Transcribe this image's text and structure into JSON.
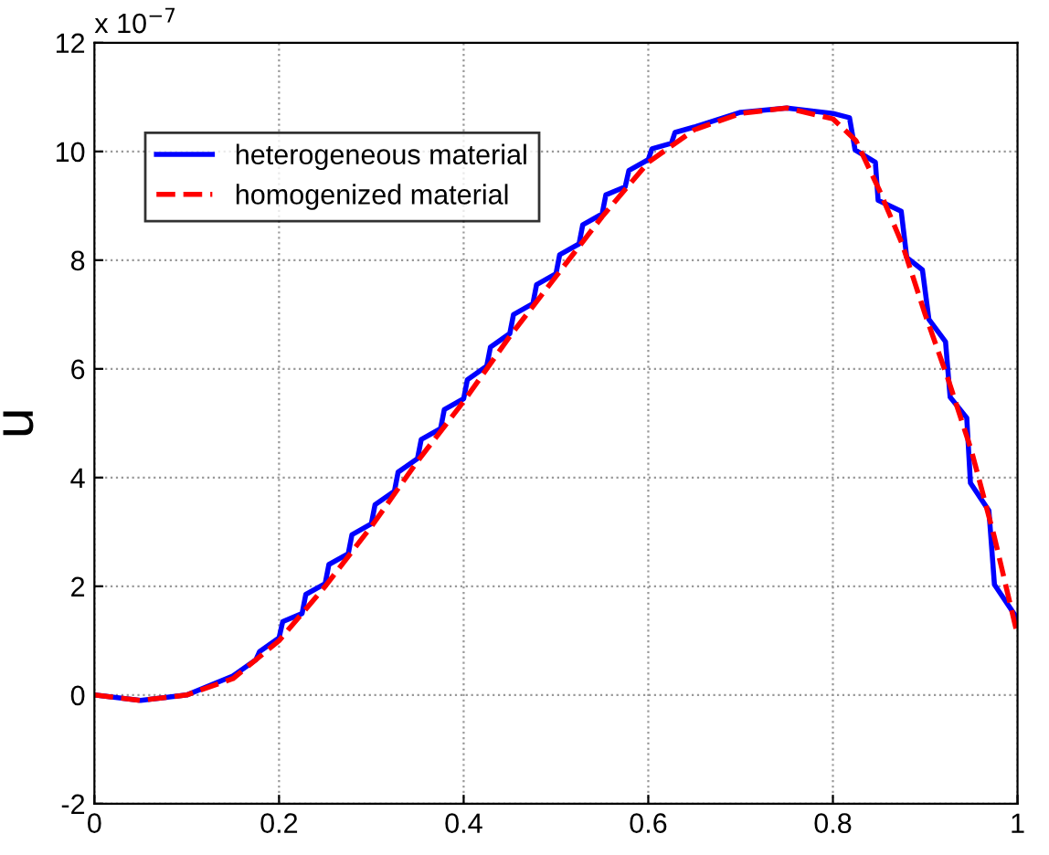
{
  "chart_data": {
    "type": "line",
    "ylabel": "u",
    "annotations": [
      "x 10$^{−7}$"
    ],
    "xlim": [
      0,
      1
    ],
    "ylim": [
      -2,
      12
    ],
    "xticks": [
      0,
      0.2,
      0.4,
      0.6,
      0.8,
      1
    ],
    "yticks": [
      -2,
      0,
      2,
      4,
      6,
      8,
      10,
      12
    ],
    "grid": true,
    "legend": "top left",
    "series": [
      {
        "name": "heterogeneous material",
        "color": "#0000ff",
        "line_style": "solid",
        "x": [
          0,
          0.05,
          0.1,
          0.15,
          0.175,
          0.179,
          0.2,
          0.204,
          0.225,
          0.229,
          0.25,
          0.254,
          0.275,
          0.279,
          0.3,
          0.304,
          0.325,
          0.329,
          0.35,
          0.354,
          0.375,
          0.379,
          0.4,
          0.404,
          0.425,
          0.429,
          0.45,
          0.454,
          0.475,
          0.479,
          0.5,
          0.504,
          0.525,
          0.529,
          0.55,
          0.554,
          0.575,
          0.579,
          0.6,
          0.604,
          0.625,
          0.629,
          0.65,
          0.7,
          0.75,
          0.8,
          0.818,
          0.824,
          0.846,
          0.849,
          0.874,
          0.88,
          0.897,
          0.904,
          0.922,
          0.927,
          0.945,
          0.949,
          0.969,
          0.975,
          1.0
        ],
        "values": [
          0,
          -0.1,
          0,
          0.35,
          0.65,
          0.8,
          1.05,
          1.35,
          1.5,
          1.85,
          2.05,
          2.4,
          2.6,
          2.95,
          3.15,
          3.5,
          3.75,
          4.1,
          4.35,
          4.7,
          4.9,
          5.25,
          5.45,
          5.8,
          6.05,
          6.4,
          6.65,
          7.0,
          7.2,
          7.55,
          7.75,
          8.1,
          8.3,
          8.65,
          8.85,
          9.2,
          9.35,
          9.65,
          9.85,
          10.05,
          10.15,
          10.35,
          10.45,
          10.72,
          10.8,
          10.7,
          10.62,
          10.03,
          9.8,
          9.1,
          8.9,
          8.05,
          7.82,
          6.91,
          6.5,
          5.48,
          5.1,
          3.9,
          3.39,
          2.03,
          1.4
        ]
      },
      {
        "name": "homogenized material",
        "color": "#ff0000",
        "line_style": "dashed",
        "x": [
          0,
          0.05,
          0.1,
          0.15,
          0.2,
          0.25,
          0.3,
          0.35,
          0.4,
          0.45,
          0.5,
          0.55,
          0.6,
          0.65,
          0.7,
          0.75,
          0.8,
          0.825,
          0.85,
          0.875,
          0.9,
          0.925,
          0.95,
          0.975,
          1.0
        ],
        "values": [
          0,
          -0.1,
          0,
          0.3,
          1.0,
          2.0,
          3.1,
          4.3,
          5.4,
          6.6,
          7.7,
          8.8,
          9.8,
          10.4,
          10.7,
          10.8,
          10.6,
          10.2,
          9.3,
          8.3,
          7.0,
          5.8,
          4.5,
          2.9,
          1.1
        ]
      }
    ]
  }
}
